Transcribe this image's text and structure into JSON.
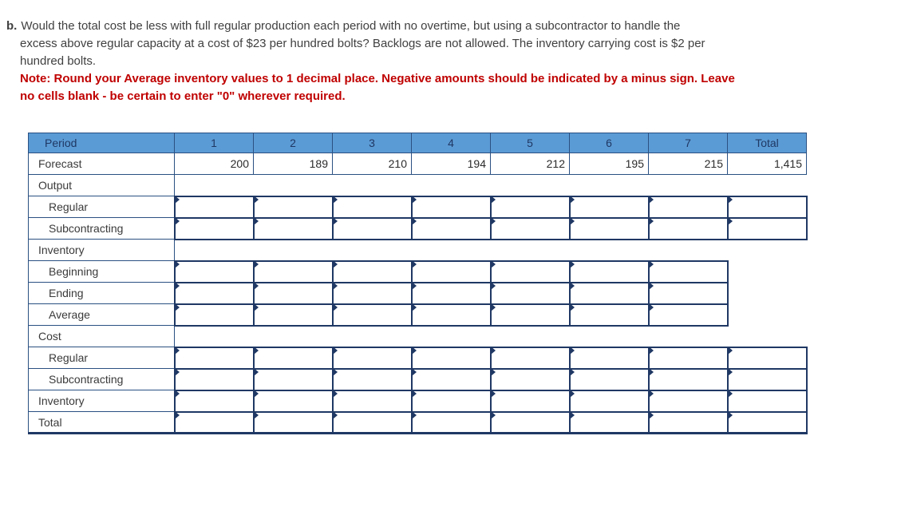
{
  "question": {
    "label": "b.",
    "text": "Would the total cost be less with full regular production each period with no overtime, but using a subcontractor to handle the\nexcess above regular capacity at a cost of $23 per hundred bolts? Backlogs are not allowed. The inventory carrying cost is $2 per\nhundred bolts.",
    "note": "Note: Round your Average inventory values to 1 decimal place. Negative amounts should be indicated by a minus sign. Leave\nno cells blank - be certain to enter \"0\" wherever required."
  },
  "table": {
    "headers": [
      "Period",
      "1",
      "2",
      "3",
      "4",
      "5",
      "6",
      "7",
      "Total"
    ],
    "rows": [
      {
        "label": "Forecast",
        "type": "static",
        "indent": false,
        "values": [
          "200",
          "189",
          "210",
          "194",
          "212",
          "195",
          "215",
          "1,415"
        ]
      },
      {
        "label": "Output",
        "type": "section",
        "indent": false
      },
      {
        "label": "Regular",
        "type": "input",
        "indent": true,
        "cells": 8
      },
      {
        "label": "Subcontracting",
        "type": "input",
        "indent": true,
        "cells": 8
      },
      {
        "label": "Inventory",
        "type": "section",
        "indent": false
      },
      {
        "label": "Beginning",
        "type": "input",
        "indent": true,
        "cells": 7
      },
      {
        "label": "Ending",
        "type": "input",
        "indent": true,
        "cells": 7
      },
      {
        "label": "Average",
        "type": "input",
        "indent": true,
        "cells": 7
      },
      {
        "label": "Cost",
        "type": "section",
        "indent": false
      },
      {
        "label": "Regular",
        "type": "input",
        "indent": true,
        "cells": 8
      },
      {
        "label": "Subcontracting",
        "type": "input",
        "indent": true,
        "cells": 8
      },
      {
        "label": "Inventory",
        "type": "input",
        "indent": false,
        "cells": 8
      },
      {
        "label": "Total",
        "type": "input",
        "indent": false,
        "cells": 8
      }
    ]
  },
  "colors": {
    "header_bg": "#5b9bd5",
    "header_text": "#1f3864",
    "border": "#2a5082",
    "border_strong": "#1f3864",
    "note_red": "#c00000",
    "body_text": "#404040"
  }
}
